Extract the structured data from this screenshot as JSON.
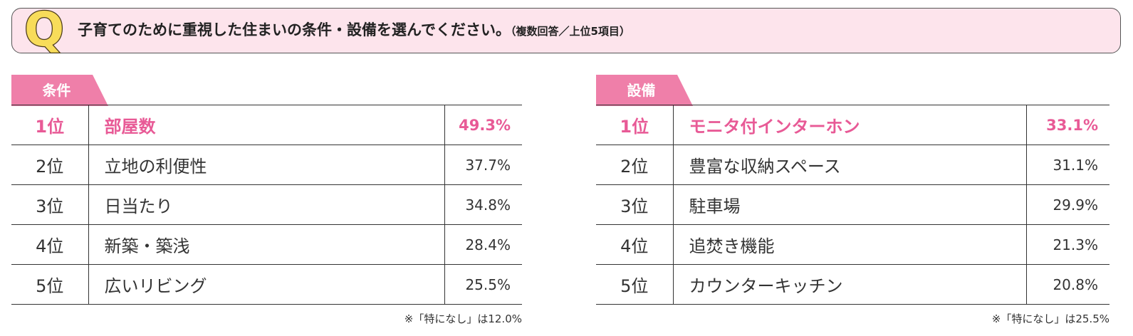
{
  "question": {
    "icon_letter": "Q",
    "text": "子育てのために重視した住まいの条件・設備を選んでください。",
    "subtext": "（複数回答／上位5項目）"
  },
  "colors": {
    "accent": "#e85a96",
    "tag_pink": "#ef7fa9",
    "bar_bg": "#fde4ec",
    "icon_yellow": "#f8dc5a"
  },
  "conditions": {
    "label": "条件",
    "rows": [
      {
        "rank": "1位",
        "item": "部屋数",
        "pct": "49.3%"
      },
      {
        "rank": "2位",
        "item": "立地の利便性",
        "pct": "37.7%"
      },
      {
        "rank": "3位",
        "item": "日当たり",
        "pct": "34.8%"
      },
      {
        "rank": "4位",
        "item": "新築・築浅",
        "pct": "28.4%"
      },
      {
        "rank": "5位",
        "item": "広いリビング",
        "pct": "25.5%"
      }
    ],
    "note": "※「特になし」は12.0%"
  },
  "equipment": {
    "label": "設備",
    "rows": [
      {
        "rank": "1位",
        "item": "モニタ付インターホン",
        "pct": "33.1%"
      },
      {
        "rank": "2位",
        "item": "豊富な収納スペース",
        "pct": "31.1%"
      },
      {
        "rank": "3位",
        "item": "駐車場",
        "pct": "29.9%"
      },
      {
        "rank": "4位",
        "item": "追焚き機能",
        "pct": "21.3%"
      },
      {
        "rank": "5位",
        "item": "カウンターキッチン",
        "pct": "20.8%"
      }
    ],
    "note": "※「特になし」は25.5%"
  }
}
